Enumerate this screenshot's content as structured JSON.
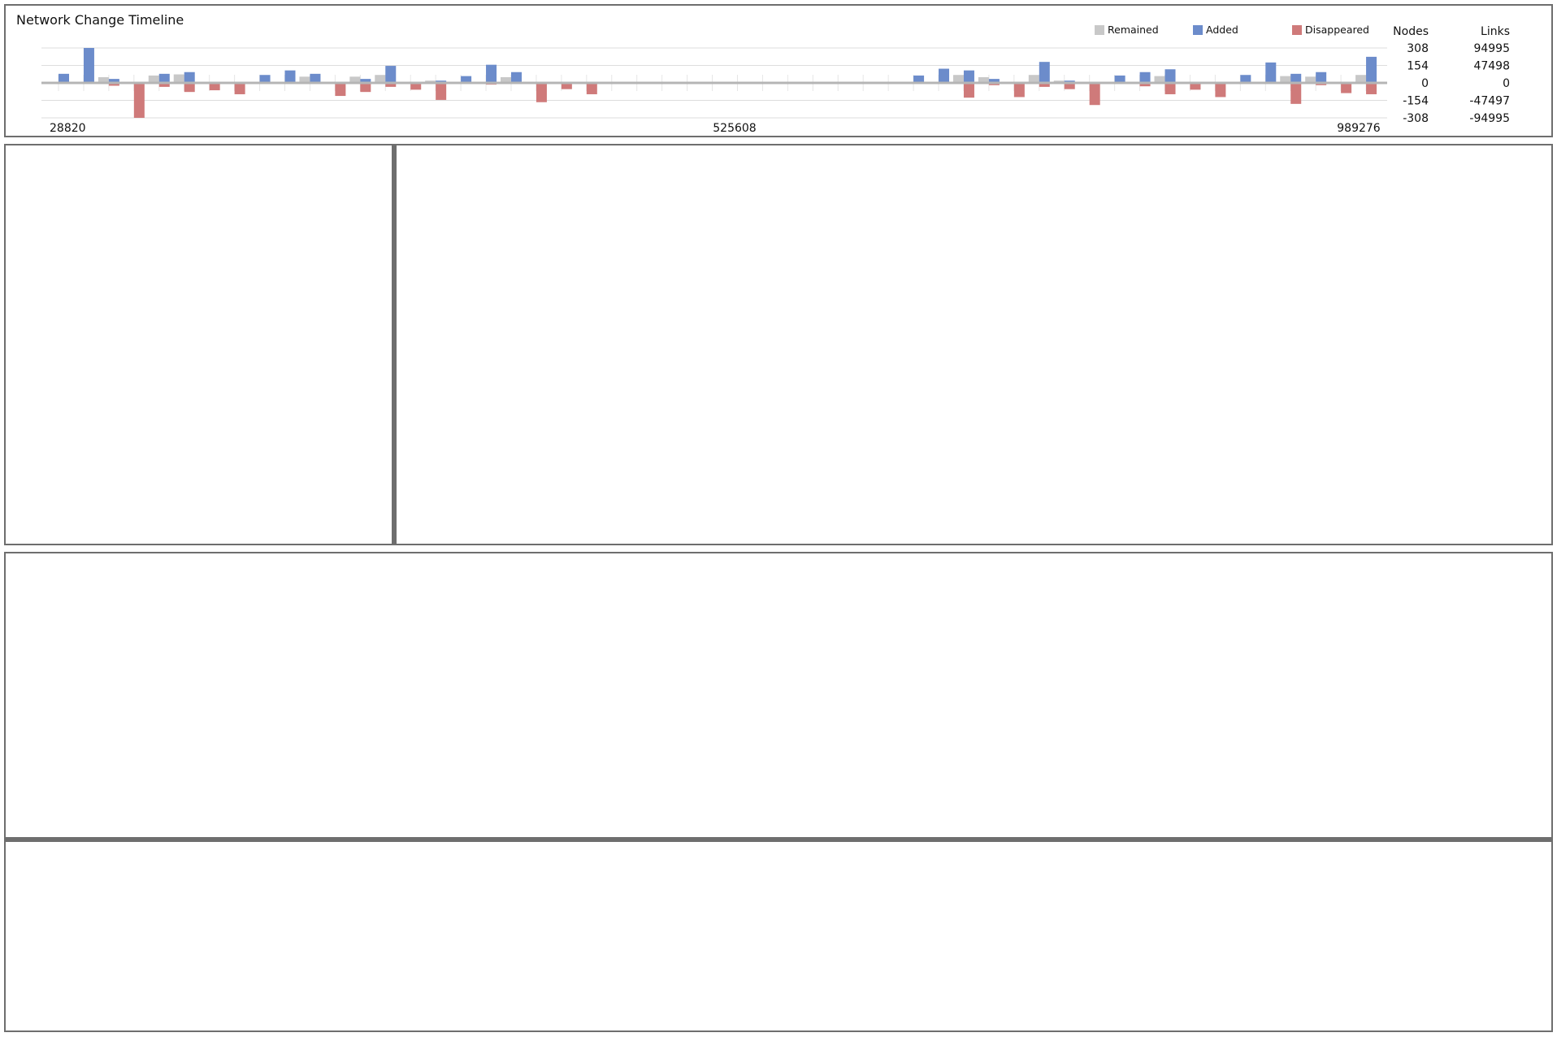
{
  "chart_data": {
    "type": "bar",
    "title": "Network Change Timeline",
    "legend": {
      "position": "top-right",
      "items": [
        "Remained",
        "Added",
        "Disappeared"
      ]
    },
    "colors": {
      "Remained": "#c8c8c8",
      "Added": "#6c8ccb",
      "Disappeared": "#cf7a7a"
    },
    "x_ticks": [
      "28820",
      "525608",
      "989276"
    ],
    "y_axes": [
      {
        "label": "Nodes",
        "ticks": [
          "308",
          "154",
          "0",
          "-154",
          "-308"
        ],
        "range": [
          -308,
          308
        ]
      },
      {
        "label": "Links",
        "ticks": [
          "94995",
          "47498",
          "0",
          "-47497",
          "-94995"
        ],
        "range": [
          -94995,
          94995
        ]
      }
    ],
    "grid": true,
    "groups": [
      {
        "remained": 0,
        "added": 80,
        "disappeared": 0
      },
      {
        "remained": 0,
        "added": 308,
        "disappeared": 0
      },
      {
        "remained": 50,
        "added": 35,
        "disappeared": -25
      },
      {
        "remained": 0,
        "added": 0,
        "disappeared": -308
      },
      {
        "remained": 65,
        "added": 80,
        "disappeared": -35
      },
      {
        "remained": 75,
        "added": 95,
        "disappeared": -80
      },
      {
        "remained": 0,
        "added": 0,
        "disappeared": -65
      },
      {
        "remained": 0,
        "added": 0,
        "disappeared": -100
      },
      {
        "remained": 0,
        "added": 70,
        "disappeared": 0
      },
      {
        "remained": 0,
        "added": 110,
        "disappeared": 0
      },
      {
        "remained": 55,
        "added": 80,
        "disappeared": 0
      },
      {
        "remained": 0,
        "added": 0,
        "disappeared": -115
      },
      {
        "remained": 55,
        "added": 35,
        "disappeared": -80
      },
      {
        "remained": 70,
        "added": 150,
        "disappeared": -35
      },
      {
        "remained": 0,
        "added": 0,
        "disappeared": -60
      },
      {
        "remained": 20,
        "added": 20,
        "disappeared": -150
      },
      {
        "remained": 0,
        "added": 60,
        "disappeared": 0
      },
      {
        "remained": 0,
        "added": 160,
        "disappeared": -15
      },
      {
        "remained": 50,
        "added": 95,
        "disappeared": 0
      },
      {
        "remained": 0,
        "added": 0,
        "disappeared": -170
      },
      {
        "remained": 0,
        "added": 0,
        "disappeared": -55
      },
      {
        "remained": 0,
        "added": 0,
        "disappeared": -100
      },
      {
        "remained": 0,
        "added": 0,
        "disappeared": 0
      },
      {
        "remained": 0,
        "added": 0,
        "disappeared": 0
      },
      {
        "remained": 0,
        "added": 0,
        "disappeared": 0
      },
      {
        "remained": 0,
        "added": 0,
        "disappeared": 0
      },
      {
        "remained": 0,
        "added": 0,
        "disappeared": 0
      },
      {
        "remained": 0,
        "added": 0,
        "disappeared": 0
      },
      {
        "remained": 0,
        "added": 0,
        "disappeared": 0
      },
      {
        "remained": 0,
        "added": 0,
        "disappeared": 0
      },
      {
        "remained": 0,
        "added": 0,
        "disappeared": 0
      },
      {
        "remained": 0,
        "added": 0,
        "disappeared": 0
      },
      {
        "remained": 0,
        "added": 0,
        "disappeared": 0
      },
      {
        "remained": 0,
        "added": 0,
        "disappeared": 0
      },
      {
        "remained": 0,
        "added": 65,
        "disappeared": 0
      },
      {
        "remained": 0,
        "added": 125,
        "disappeared": 0
      },
      {
        "remained": 70,
        "added": 110,
        "disappeared": -130
      },
      {
        "remained": 50,
        "added": 35,
        "disappeared": -20
      },
      {
        "remained": 0,
        "added": 0,
        "disappeared": -125
      },
      {
        "remained": 70,
        "added": 185,
        "disappeared": -35
      },
      {
        "remained": 20,
        "added": 20,
        "disappeared": -55
      },
      {
        "remained": 0,
        "added": 0,
        "disappeared": -195
      },
      {
        "remained": 0,
        "added": 65,
        "disappeared": 0
      },
      {
        "remained": 0,
        "added": 95,
        "disappeared": -30
      },
      {
        "remained": 60,
        "added": 120,
        "disappeared": -100
      },
      {
        "remained": 0,
        "added": 0,
        "disappeared": -60
      },
      {
        "remained": 0,
        "added": 0,
        "disappeared": -125
      },
      {
        "remained": 0,
        "added": 70,
        "disappeared": 0
      },
      {
        "remained": 0,
        "added": 180,
        "disappeared": 0
      },
      {
        "remained": 60,
        "added": 80,
        "disappeared": -185
      },
      {
        "remained": 55,
        "added": 95,
        "disappeared": -20
      },
      {
        "remained": 0,
        "added": 0,
        "disappeared": -90
      },
      {
        "remained": 70,
        "added": 230,
        "disappeared": -100
      }
    ]
  }
}
